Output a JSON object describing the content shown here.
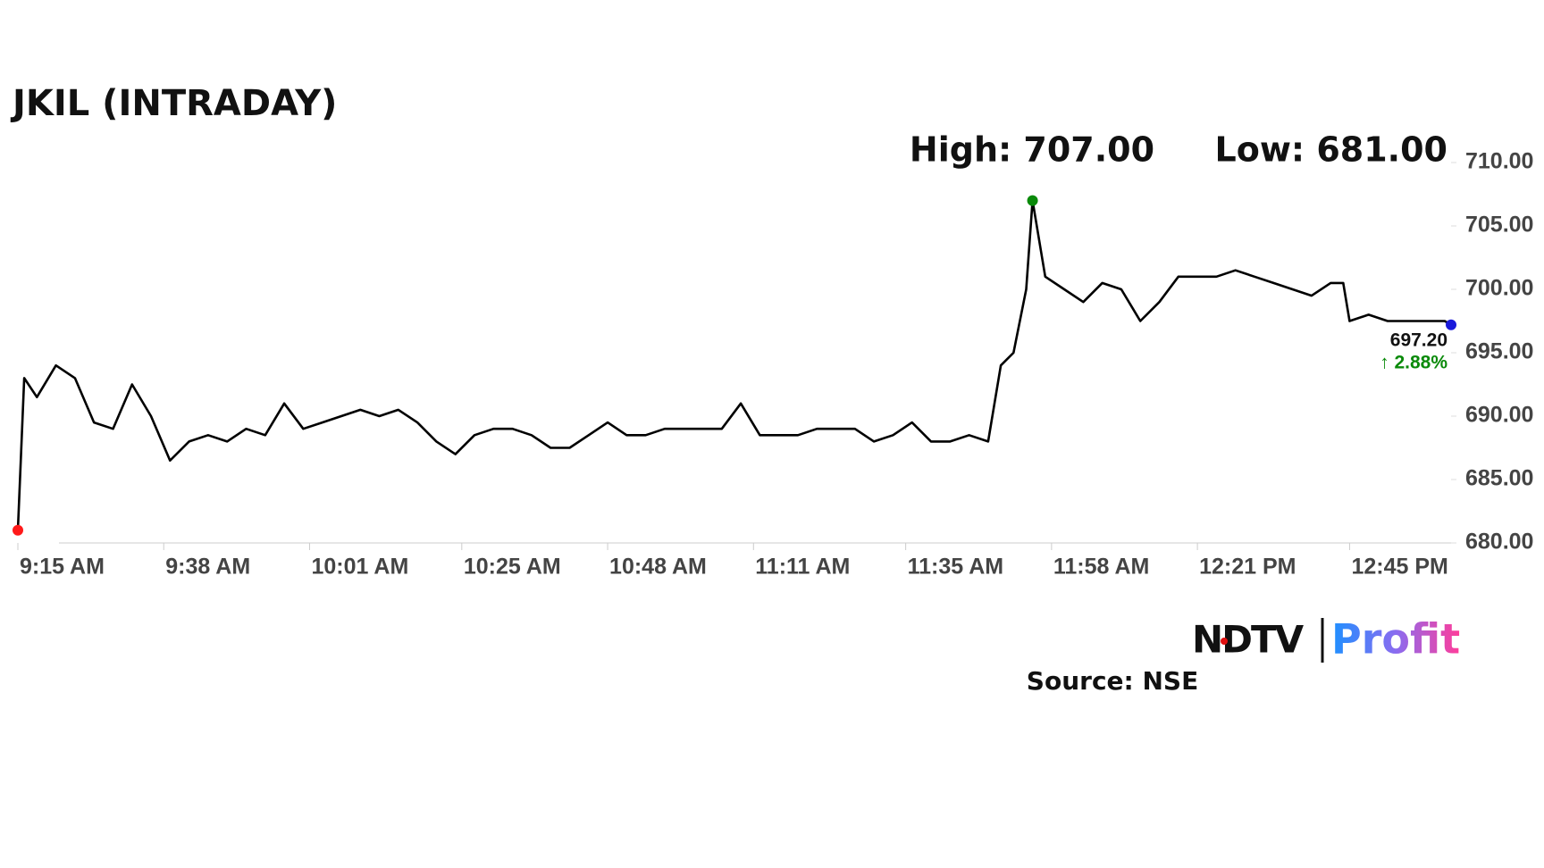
{
  "chart_data": {
    "type": "line",
    "title": "JKIL (INTRADAY)",
    "high_label": "High: 707.00",
    "low_label": "Low: 681.00",
    "last_label": "697.20",
    "change_label": "↑ 2.88%",
    "source": "Source: NSE",
    "logo_left": "NDTV",
    "logo_right": "Profit",
    "color": "#000000",
    "high_color": "#0a8a0a",
    "low_color": "#ff1a1a",
    "last_color": "#1a1adb",
    "change_color": "#0a8a0a",
    "x": [
      "9:15 AM",
      "9:16 AM",
      "9:18 AM",
      "9:21 AM",
      "9:24 AM",
      "9:27 AM",
      "9:30 AM",
      "9:33 AM",
      "9:36 AM",
      "9:39 AM",
      "9:42 AM",
      "9:45 AM",
      "9:48 AM",
      "9:51 AM",
      "9:54 AM",
      "9:57 AM",
      "10:00 AM",
      "10:03 AM",
      "10:06 AM",
      "10:09 AM",
      "10:12 AM",
      "10:15 AM",
      "10:18 AM",
      "10:21 AM",
      "10:24 AM",
      "10:27 AM",
      "10:30 AM",
      "10:33 AM",
      "10:36 AM",
      "10:39 AM",
      "10:42 AM",
      "10:45 AM",
      "10:48 AM",
      "10:51 AM",
      "10:54 AM",
      "10:57 AM",
      "11:00 AM",
      "11:03 AM",
      "11:06 AM",
      "11:09 AM",
      "11:12 AM",
      "11:15 AM",
      "11:18 AM",
      "11:21 AM",
      "11:24 AM",
      "11:27 AM",
      "11:30 AM",
      "11:33 AM",
      "11:36 AM",
      "11:39 AM",
      "11:42 AM",
      "11:45 AM",
      "11:48 AM",
      "11:50 AM",
      "11:52 AM",
      "11:54 AM",
      "11:55 AM",
      "11:57 AM",
      "12:00 PM",
      "12:03 PM",
      "12:06 PM",
      "12:09 PM",
      "12:12 PM",
      "12:15 PM",
      "12:18 PM",
      "12:21 PM",
      "12:24 PM",
      "12:27 PM",
      "12:30 PM",
      "12:33 PM",
      "12:36 PM",
      "12:39 PM",
      "12:42 PM",
      "12:44 PM",
      "12:45 PM",
      "12:48 PM",
      "12:51 PM",
      "12:54 PM",
      "12:57 PM",
      "1:00 PM",
      "1:01 PM"
    ],
    "values": [
      681,
      693,
      691.5,
      694,
      693,
      689.5,
      689,
      692.5,
      690,
      686.5,
      688,
      688.5,
      688,
      689,
      688.5,
      691,
      689,
      689.5,
      690,
      690.5,
      690,
      690.5,
      689.5,
      688,
      687,
      688.5,
      689,
      689,
      688.5,
      687.5,
      687.5,
      688.5,
      689.5,
      688.5,
      688.5,
      689,
      689,
      689,
      689,
      691,
      688.5,
      688.5,
      688.5,
      689,
      689,
      689,
      688,
      688.5,
      689.5,
      688,
      688,
      688.5,
      688,
      694,
      695,
      700,
      707,
      701,
      700,
      699,
      700.5,
      700,
      697.5,
      699,
      701,
      701,
      701,
      701.5,
      701,
      700.5,
      700,
      699.5,
      700.5,
      700.5,
      697.5,
      698,
      697.5,
      697.5,
      697.5,
      697.5,
      697.2
    ],
    "xlim": [
      "9:15 AM",
      "1:01 PM"
    ],
    "xticks": [
      "9:15 AM",
      "9:38 AM",
      "10:01 AM",
      "10:25 AM",
      "10:48 AM",
      "11:11 AM",
      "11:35 AM",
      "11:58 AM",
      "12:21 PM",
      "12:45 PM"
    ],
    "ylim": [
      680,
      710
    ],
    "yticks": [
      {
        "value": 680,
        "label": "680.00"
      },
      {
        "value": 685,
        "label": "685.00"
      },
      {
        "value": 690,
        "label": "690.00"
      },
      {
        "value": 695,
        "label": "695.00"
      },
      {
        "value": 700,
        "label": "700.00"
      },
      {
        "value": 705,
        "label": "705.00"
      },
      {
        "value": 710,
        "label": "710.00"
      }
    ]
  }
}
